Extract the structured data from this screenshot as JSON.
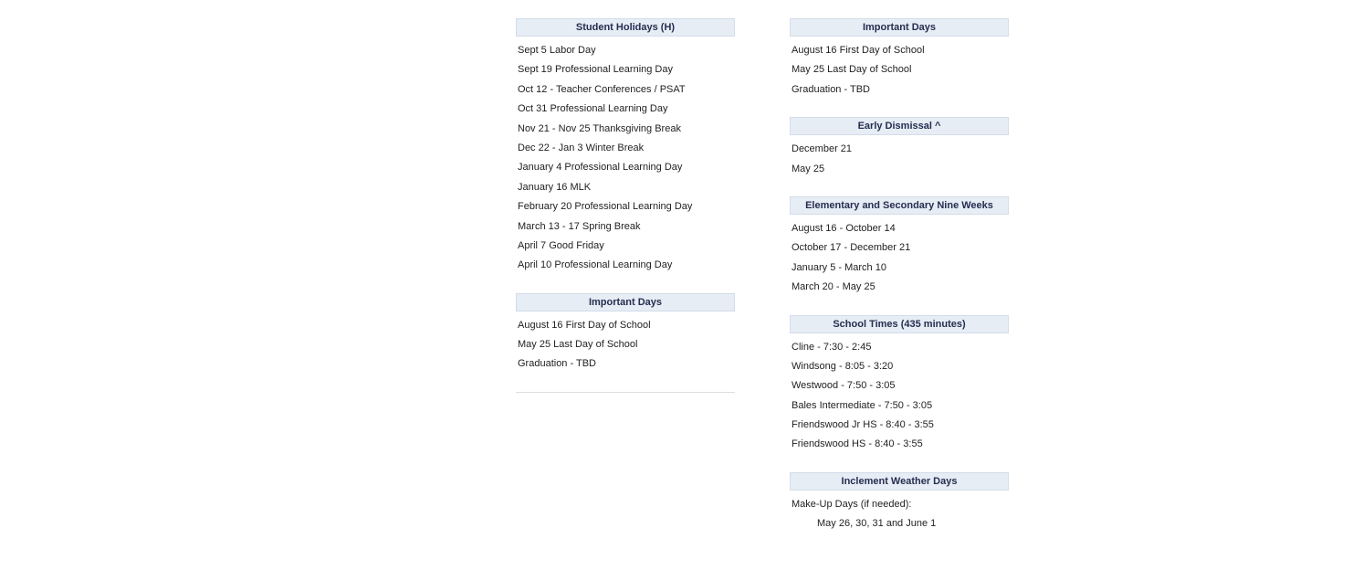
{
  "left": {
    "holidays": {
      "title": "Student Holidays (H)",
      "items": [
        "Sept 5  Labor Day",
        "Sept 19 Professional Learning Day",
        "Oct 12 - Teacher Conferences / PSAT",
        "Oct 31 Professional Learning Day",
        "Nov 21 - Nov 25 Thanksgiving Break",
        "Dec 22 - Jan 3 Winter Break",
        "January 4 Professional Learning Day",
        "January 16 MLK",
        "February 20 Professional Learning Day",
        "March 13 - 17 Spring Break",
        "April 7 Good Friday",
        "April 10 Professional Learning Day"
      ]
    },
    "important": {
      "title": "Important Days",
      "items": [
        "August 16 First Day of School",
        "May 25 Last Day of School",
        "Graduation - TBD"
      ]
    }
  },
  "right": {
    "important": {
      "title": "Important Days",
      "items": [
        "August 16 First Day of School",
        "May 25 Last Day of School",
        "Graduation - TBD"
      ]
    },
    "early": {
      "title": "Early Dismissal ^",
      "items": [
        "December 21",
        "May 25"
      ]
    },
    "nineweeks": {
      "title": "Elementary and Secondary Nine Weeks",
      "items": [
        "August 16 - October 14",
        "October 17 - December 21",
        "January 5 - March 10",
        "March 20 - May 25"
      ]
    },
    "schooltimes": {
      "title": "School Times (435 minutes)",
      "items": [
        "Cline - 7:30 - 2:45",
        "Windsong - 8:05 - 3:20",
        "Westwood - 7:50 - 3:05",
        "Bales Intermediate - 7:50 - 3:05",
        "Friendswood Jr HS - 8:40 - 3:55",
        "Friendswood HS - 8:40 - 3:55"
      ]
    },
    "inclement": {
      "title": "Inclement Weather Days",
      "items": [
        {
          "text": "Make-Up Days (if needed):",
          "indent": false
        },
        {
          "text": "May 26, 30, 31 and June 1",
          "indent": true
        }
      ]
    }
  }
}
